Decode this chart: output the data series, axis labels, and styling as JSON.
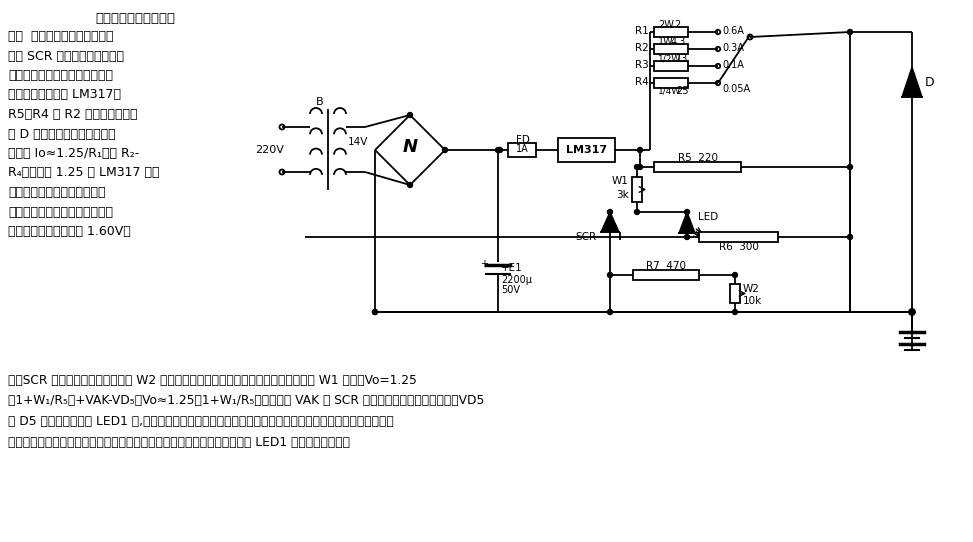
{
  "bg_color": "#ffffff",
  "title": "简单的镍镉电池自动充",
  "body_lines": [
    "电器  电路开始充电时，由于可",
    "控硅 SCR 的触发端的电压（取",
    "决于充电电池两端的电压）不足",
    "以触发导通，所以 LM317、",
    "R5、R4 或 R2 组成恒流源，经",
    "过 D 向镍镉电池恒流充电，电",
    "流值为 Io≈1.25/R₁（或 R₂-",
    "R₄），其中 1.25 为 LM317 的输",
    "出电压最低值。经过一定时间",
    "后，电池电压上升到允许最大值",
    "（一般每节电池不超过 1.60V）"
  ],
  "bottom_lines": [
    "时，SCR 触发导通（触发电压值由 W2 确定），这时电路就变成恒压电源，输出电压由 W1 确定。Vo=1.25",
    "（1+W₁/R₅）+VAK-VD₅，Vo≈1.25（1+W₁/R₅）伏。其中 VAK 为 SCR 导通时阴、阳极之间的压降，VD5",
    "为 D5 上的压降。此时 LED1 亮,表示电池快充满。当电池电压逐渐上升与输出电压接近，充电电流越来越小，",
    "最后接近于零，电池充电结束。电路若要重新启动，只要关闭电源开关，待 LED1 灭后即可再启动。"
  ]
}
